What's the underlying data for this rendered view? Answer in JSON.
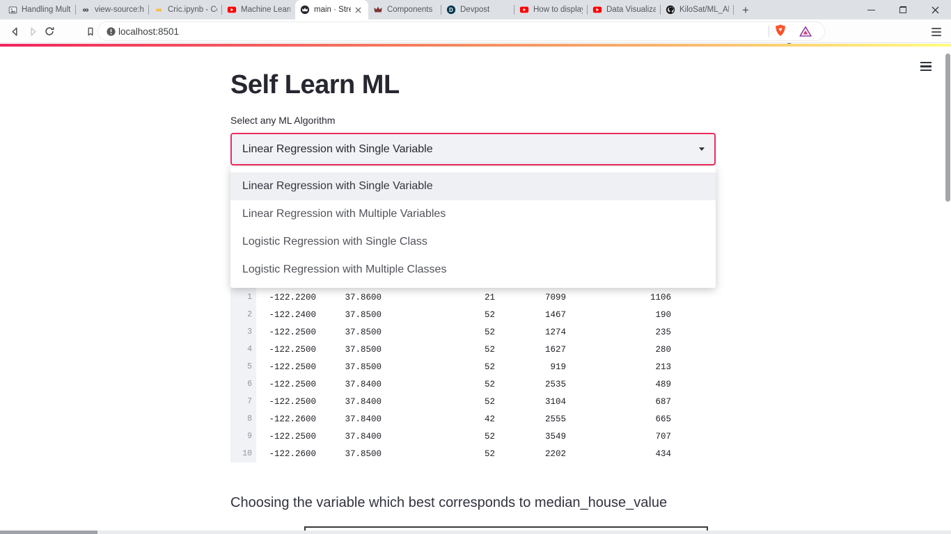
{
  "browser": {
    "tabs": [
      {
        "label": "Handling Multi",
        "icon": "image-icon",
        "active": false
      },
      {
        "label": "view-source:ht",
        "icon": "infinity-icon",
        "active": false
      },
      {
        "label": "Cric.ipynb - Co",
        "icon": "colab-icon",
        "active": false
      },
      {
        "label": "Machine Learn",
        "icon": "youtube-icon",
        "active": false
      },
      {
        "label": "main · Stre",
        "icon": "streamlit-dark-icon",
        "active": true
      },
      {
        "label": "Components",
        "icon": "streamlit-red-icon",
        "active": false
      },
      {
        "label": "Devpost",
        "icon": "devpost-icon",
        "active": false
      },
      {
        "label": "How to display",
        "icon": "youtube-icon",
        "active": false
      },
      {
        "label": "Data Visualizat",
        "icon": "youtube-icon",
        "active": false
      },
      {
        "label": "KiloSat/ML_Alg",
        "icon": "github-icon",
        "active": false
      }
    ],
    "new_tab_label": "+",
    "window_controls": {
      "minimize": "minimize-icon",
      "restore": "restore-icon",
      "close": "close-icon"
    },
    "toolbar": {
      "url": "localhost:8501",
      "shield_badge": "1",
      "icons": [
        "back-icon",
        "forward-icon",
        "reload-icon",
        "bookmark-icon",
        "site-info-icon",
        "brave-shield-icon",
        "bat-icon",
        "browser-menu-icon"
      ]
    }
  },
  "page": {
    "menu_icon": "streamlit-hamburger-icon",
    "title": "Self Learn ML",
    "select_label": "Select any ML Algorithm",
    "selectbox": {
      "value": "Linear Regression with Single Variable",
      "caret_icon": "chevron-down-icon"
    },
    "dropdown": {
      "selected_index": 0,
      "options": [
        "Linear Regression with Single Variable",
        "Linear Regression with Multiple Variables",
        "Logistic Regression with Single Class",
        "Logistic Regression with Multiple Classes"
      ]
    },
    "dataframe": {
      "rows": [
        [
          "1",
          "-122.2200",
          "37.8600",
          "21",
          "7099",
          "1106"
        ],
        [
          "2",
          "-122.2400",
          "37.8500",
          "52",
          "1467",
          "190"
        ],
        [
          "3",
          "-122.2500",
          "37.8500",
          "52",
          "1274",
          "235"
        ],
        [
          "4",
          "-122.2500",
          "37.8500",
          "52",
          "1627",
          "280"
        ],
        [
          "5",
          "-122.2500",
          "37.8500",
          "52",
          "919",
          "213"
        ],
        [
          "6",
          "-122.2500",
          "37.8400",
          "52",
          "2535",
          "489"
        ],
        [
          "7",
          "-122.2500",
          "37.8400",
          "52",
          "3104",
          "687"
        ],
        [
          "8",
          "-122.2600",
          "37.8400",
          "42",
          "2555",
          "665"
        ],
        [
          "9",
          "-122.2500",
          "37.8400",
          "52",
          "3549",
          "707"
        ],
        [
          "10",
          "-122.2600",
          "37.8500",
          "52",
          "2202",
          "434"
        ]
      ]
    },
    "subheader": "Choosing the variable which best corresponds to median_house_value",
    "colors": {
      "accent": "#ef2b5d",
      "secondary_background": "#f0f2f6",
      "decoration_gradient": [
        "#f0255f",
        "#f8b56c",
        "#fffd80"
      ]
    }
  }
}
